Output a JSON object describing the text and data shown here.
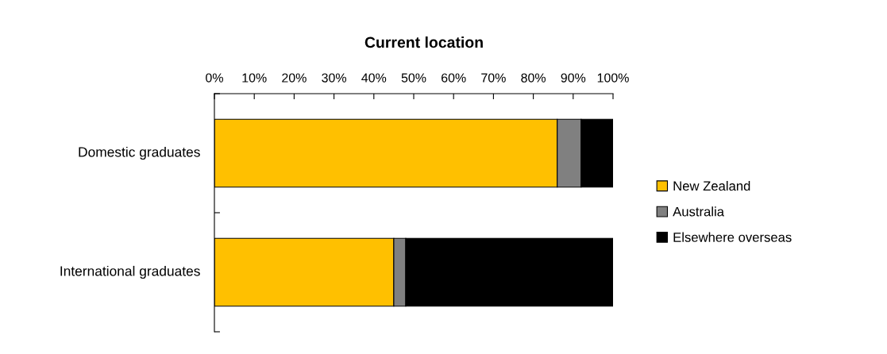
{
  "chart_data": {
    "type": "bar",
    "orientation": "horizontal",
    "stacked": true,
    "title": "Current location",
    "categories": [
      "Domestic graduates",
      "International graduates"
    ],
    "series": [
      {
        "name": "New Zealand",
        "color": "#ffc000",
        "values": [
          86,
          45
        ]
      },
      {
        "name": "Australia",
        "color": "#808080",
        "values": [
          6,
          3
        ]
      },
      {
        "name": "Elsewhere overseas",
        "color": "#000000",
        "values": [
          8,
          52
        ]
      }
    ],
    "xlim": [
      0,
      100
    ],
    "xticks": [
      {
        "value": 0,
        "label": "0%"
      },
      {
        "value": 10,
        "label": "10%"
      },
      {
        "value": 20,
        "label": "20%"
      },
      {
        "value": 30,
        "label": "30%"
      },
      {
        "value": 40,
        "label": "40%"
      },
      {
        "value": 50,
        "label": "50%"
      },
      {
        "value": 60,
        "label": "60%"
      },
      {
        "value": 70,
        "label": "70%"
      },
      {
        "value": 80,
        "label": "80%"
      },
      {
        "value": 90,
        "label": "90%"
      },
      {
        "value": 100,
        "label": "100%"
      }
    ],
    "grid": false,
    "legend": "right"
  }
}
